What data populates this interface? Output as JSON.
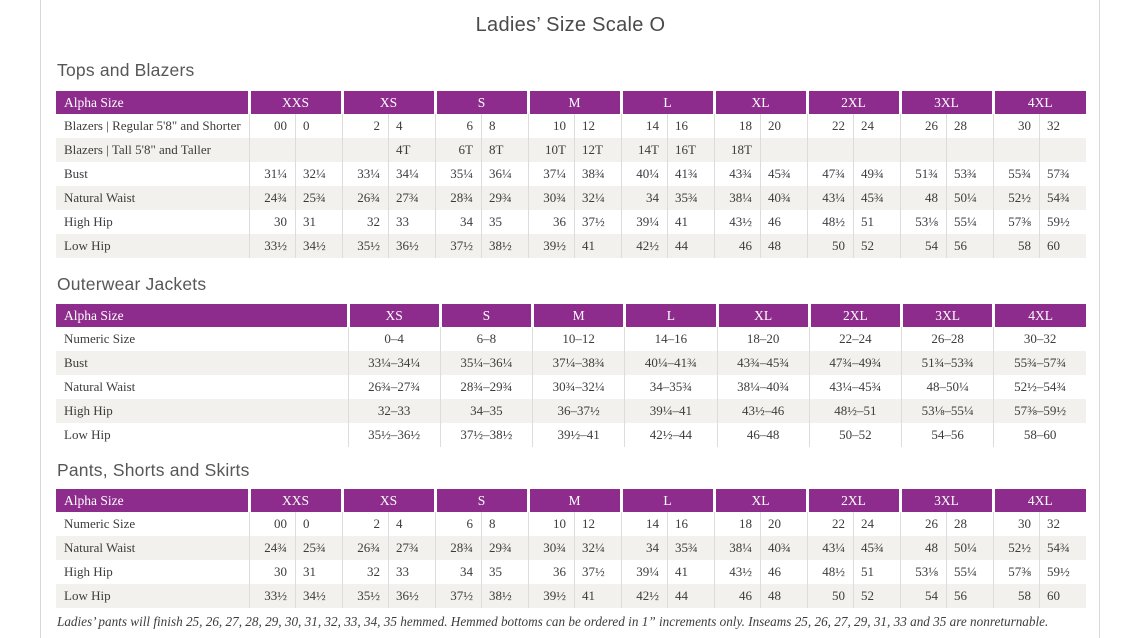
{
  "page": {
    "title": "Ladies’ Size Scale O",
    "footnote": "Ladies’ pants will finish 25, 26, 27, 28, 29, 30, 31, 32, 33, 34, 35 hemmed. Hemmed bottoms can be ordered in 1” increments only. Inseams 25, 26, 27, 29, 31, 33 and 35 are nonreturnable."
  },
  "colors": {
    "header_bg": "#8e2c8d",
    "stripe": "#f2f1ee",
    "cell_border": "#dcdcdc",
    "page_rule": "#d8d8d8",
    "text": "#3c3c3c"
  },
  "tables": [
    {
      "title": "Tops and Blazers",
      "layout": "paired",
      "corner_label": "Alpha Size",
      "groups": [
        "XXS",
        "XS",
        "S",
        "M",
        "L",
        "XL",
        "2XL",
        "3XL",
        "4XL"
      ],
      "rows": [
        {
          "label": "Blazers | Regular 5'8\" and Shorter",
          "values": [
            "00",
            "0",
            "2",
            "4",
            "6",
            "8",
            "10",
            "12",
            "14",
            "16",
            "18",
            "20",
            "22",
            "24",
            "26",
            "28",
            "30",
            "32"
          ]
        },
        {
          "label": "Blazers | Tall 5'8\" and Taller",
          "values": [
            "",
            "",
            "",
            "4T",
            "6T",
            "8T",
            "10T",
            "12T",
            "14T",
            "16T",
            "18T",
            "",
            "",
            "",
            "",
            "",
            "",
            ""
          ]
        },
        {
          "label": "Bust",
          "values": [
            "31¼",
            "32¼",
            "33¼",
            "34¼",
            "35¼",
            "36¼",
            "37¼",
            "38¾",
            "40¼",
            "41¾",
            "43¾",
            "45¾",
            "47¾",
            "49¾",
            "51¾",
            "53¾",
            "55¾",
            "57¾"
          ]
        },
        {
          "label": "Natural Waist",
          "values": [
            "24¾",
            "25¾",
            "26¾",
            "27¾",
            "28¾",
            "29¾",
            "30¾",
            "32¼",
            "34",
            "35¾",
            "38¼",
            "40¾",
            "43¼",
            "45¾",
            "48",
            "50¼",
            "52½",
            "54¾"
          ]
        },
        {
          "label": "High Hip",
          "values": [
            "30",
            "31",
            "32",
            "33",
            "34",
            "35",
            "36",
            "37½",
            "39¼",
            "41",
            "43½",
            "46",
            "48½",
            "51",
            "53⅛",
            "55¼",
            "57⅜",
            "59½"
          ]
        },
        {
          "label": "Low Hip",
          "values": [
            "33½",
            "34½",
            "35½",
            "36½",
            "37½",
            "38½",
            "39½",
            "41",
            "42½",
            "44",
            "46",
            "48",
            "50",
            "52",
            "54",
            "56",
            "58",
            "60"
          ]
        }
      ]
    },
    {
      "title": "Outerwear Jackets",
      "layout": "single",
      "corner_label": "Alpha Size",
      "groups": [
        "XS",
        "S",
        "M",
        "L",
        "XL",
        "2XL",
        "3XL",
        "4XL"
      ],
      "rows": [
        {
          "label": "Numeric Size",
          "values": [
            "0–4",
            "6–8",
            "10–12",
            "14–16",
            "18–20",
            "22–24",
            "26–28",
            "30–32"
          ]
        },
        {
          "label": "Bust",
          "values": [
            "33¼–34¼",
            "35¼–36¼",
            "37¼–38¾",
            "40¼–41¾",
            "43¾–45¾",
            "47¾–49¾",
            "51¾–53¾",
            "55¾–57¾"
          ]
        },
        {
          "label": "Natural Waist",
          "values": [
            "26¾–27¾",
            "28¾–29¾",
            "30¾–32¼",
            "34–35¾",
            "38¼–40¾",
            "43¼–45¾",
            "48–50¼",
            "52½–54¾"
          ]
        },
        {
          "label": "High Hip",
          "values": [
            "32–33",
            "34–35",
            "36–37½",
            "39¼–41",
            "43½–46",
            "48½–51",
            "53⅛–55¼",
            "57⅜–59½"
          ]
        },
        {
          "label": "Low Hip",
          "values": [
            "35½–36½",
            "37½–38½",
            "39½–41",
            "42½–44",
            "46–48",
            "50–52",
            "54–56",
            "58–60"
          ]
        }
      ]
    },
    {
      "title": "Pants, Shorts and Skirts",
      "layout": "paired",
      "corner_label": "Alpha Size",
      "groups": [
        "XXS",
        "XS",
        "S",
        "M",
        "L",
        "XL",
        "2XL",
        "3XL",
        "4XL"
      ],
      "rows": [
        {
          "label": "Numeric Size",
          "values": [
            "00",
            "0",
            "2",
            "4",
            "6",
            "8",
            "10",
            "12",
            "14",
            "16",
            "18",
            "20",
            "22",
            "24",
            "26",
            "28",
            "30",
            "32"
          ]
        },
        {
          "label": "Natural Waist",
          "values": [
            "24¾",
            "25¾",
            "26¾",
            "27¾",
            "28¾",
            "29¾",
            "30¾",
            "32¼",
            "34",
            "35¾",
            "38¼",
            "40¾",
            "43¼",
            "45¾",
            "48",
            "50¼",
            "52½",
            "54¾"
          ]
        },
        {
          "label": "High Hip",
          "values": [
            "30",
            "31",
            "32",
            "33",
            "34",
            "35",
            "36",
            "37½",
            "39¼",
            "41",
            "43½",
            "46",
            "48½",
            "51",
            "53⅛",
            "55¼",
            "57⅜",
            "59½"
          ]
        },
        {
          "label": "Low Hip",
          "values": [
            "33½",
            "34½",
            "35½",
            "36½",
            "37½",
            "38½",
            "39½",
            "41",
            "42½",
            "44",
            "46",
            "48",
            "50",
            "52",
            "54",
            "56",
            "58",
            "60"
          ]
        }
      ]
    }
  ]
}
